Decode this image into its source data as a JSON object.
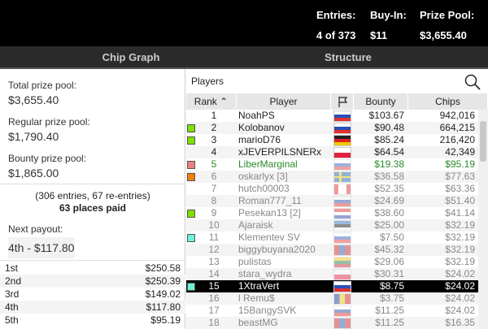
{
  "header": {
    "entries_label": "Entries:",
    "entries_value": "4 of 373",
    "buyin_label": "Buy-In:",
    "buyin_value": "$11",
    "prize_label": "Prize Pool:",
    "prize_value": "$3,655.40"
  },
  "tabs": [
    "Chip Graph",
    "Structure"
  ],
  "left": {
    "total_label": "Total prize pool:",
    "total_value": "$3,655.40",
    "regular_label": "Regular prize pool:",
    "regular_value": "$1,790.40",
    "bounty_label": "Bounty prize pool:",
    "bounty_value": "$1,865.00",
    "entries_note": "(306 entries, 67 re-entries)",
    "places_paid": "63 places paid",
    "next_label": "Next payout:",
    "next_value": "4th - $117.80",
    "payouts": [
      [
        "1st",
        "$250.58"
      ],
      [
        "2nd",
        "$250.39"
      ],
      [
        "3rd",
        "$149.02"
      ],
      [
        "4th",
        "$117.80"
      ],
      [
        "5th",
        "$95.19"
      ]
    ]
  },
  "players": {
    "title": "Players",
    "search_icon": "search-icon",
    "columns": [
      "Rank",
      "Player",
      "flag-icon",
      "Bounty",
      "Chips"
    ],
    "sort": "rank-ascending",
    "rows": [
      {
        "rank": "1",
        "name": "NoahPS",
        "flag": "russia",
        "bounty": "$103.67",
        "chips": "942,016",
        "marker": null,
        "state": "active"
      },
      {
        "rank": "2",
        "name": "Kolobanov",
        "flag": "russia",
        "bounty": "$90.48",
        "chips": "664,215",
        "marker": "#7fe000",
        "state": "active"
      },
      {
        "rank": "3",
        "name": "marioD76",
        "flag": "germany",
        "bounty": "$85.24",
        "chips": "216,420",
        "marker": "#7fe000",
        "state": "active"
      },
      {
        "rank": "4",
        "name": "xJEVERPILSNERx",
        "flag": "poland",
        "bounty": "$64.54",
        "chips": "42,349",
        "marker": null,
        "state": "active"
      },
      {
        "rank": "5",
        "name": "LiberMarginal",
        "flag": "russia",
        "bounty": "$19.38",
        "chips": "$95.19",
        "marker": "#f08080",
        "state": "highlight"
      },
      {
        "rank": "6",
        "name": "oskarlyx [3]",
        "flag": "sweden",
        "bounty": "$36.58",
        "chips": "$77.63",
        "marker": "#f08000",
        "state": "out"
      },
      {
        "rank": "7",
        "name": "hutch00003",
        "flag": "canada",
        "bounty": "$52.35",
        "chips": "$63.36",
        "marker": null,
        "state": "out"
      },
      {
        "rank": "8",
        "name": "Roman777_11",
        "flag": "russia",
        "bounty": "$24.69",
        "chips": "$51.40",
        "marker": null,
        "state": "out"
      },
      {
        "rank": "9",
        "name": "Pesekan13 [2]",
        "flag": "croatia",
        "bounty": "$38.60",
        "chips": "$41.14",
        "marker": "#7fe000",
        "state": "out"
      },
      {
        "rank": "10",
        "name": "Ajaraisk",
        "flag": "estonia",
        "bounty": "$25.00",
        "chips": "$32.19",
        "marker": null,
        "state": "out"
      },
      {
        "rank": "11",
        "name": "Klementev SV",
        "flag": "russia",
        "bounty": "$7.50",
        "chips": "$32.19",
        "marker": "#70f0d8",
        "state": "out"
      },
      {
        "rank": "12",
        "name": "biggybuyana2020",
        "flag": "mongolia",
        "bounty": "$45.32",
        "chips": "$32.19",
        "marker": null,
        "state": "out"
      },
      {
        "rank": "13",
        "name": "pulistas",
        "flag": "lithuania",
        "bounty": "$29.06",
        "chips": "$32.19",
        "marker": null,
        "state": "out"
      },
      {
        "rank": "14",
        "name": "stara_wydra",
        "flag": "poland",
        "bounty": "$30.31",
        "chips": "$24.02",
        "marker": null,
        "state": "out"
      },
      {
        "rank": "15",
        "name": "1XtraVert",
        "flag": "russia",
        "bounty": "$8.75",
        "chips": "$24.02",
        "marker": "#70f0d8",
        "state": "selected"
      },
      {
        "rank": "16",
        "name": "l Remu$",
        "flag": "romania",
        "bounty": "$3.75",
        "chips": "$24.02",
        "marker": null,
        "state": "out"
      },
      {
        "rank": "17",
        "name": "15BangySVK",
        "flag": "slovakia",
        "bounty": "$11.25",
        "chips": "$24.02",
        "marker": null,
        "state": "out"
      },
      {
        "rank": "18",
        "name": "beastMG",
        "flag": "mongolia",
        "bounty": "$11.25",
        "chips": "$16.35",
        "marker": null,
        "state": "out"
      }
    ]
  },
  "colors": {
    "highlight_text": "#2a8a2a",
    "out_text": "#888888",
    "selected_bg": "#000000"
  }
}
